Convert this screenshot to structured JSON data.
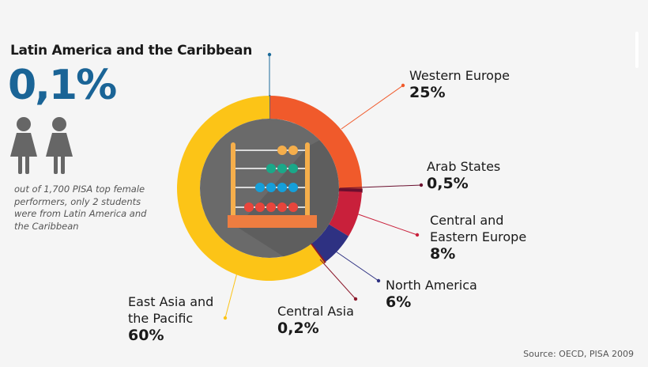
{
  "highlight": {
    "title": "Latin America and the Caribbean",
    "value": "0,1%",
    "description": "out of 1,700 PISA top female performers, only 2 students were from Latin America and the Caribbean",
    "icon": "female-student-icon",
    "icon_count": 2,
    "color": "#1a6496"
  },
  "chart_data": {
    "type": "pie",
    "variant": "donut",
    "start": "top",
    "direction": "clockwise",
    "center_icon": "abacus-icon",
    "slices": [
      {
        "label": "Latin America and the Caribbean",
        "value": 0.1,
        "display": "0,1%",
        "color": "#1b6a9a"
      },
      {
        "label": "Western Europe",
        "value": 25,
        "display": "25%",
        "color": "#f05a2b"
      },
      {
        "label": "Arab States",
        "value": 0.5,
        "display": "0,5%",
        "color": "#6a0f2e"
      },
      {
        "label": "Central and Eastern Europe",
        "value": 8,
        "display": "8%",
        "color": "#c9203b"
      },
      {
        "label": "North America",
        "value": 6,
        "display": "6%",
        "color": "#2e3182"
      },
      {
        "label": "Central Asia",
        "value": 0.2,
        "display": "0,2%",
        "color": "#8c1a2c"
      },
      {
        "label": "East Asia and the Pacific",
        "value": 60,
        "display": "60%",
        "color": "#fcc417"
      }
    ],
    "labels": [
      {
        "lines": [
          "Western Europe"
        ],
        "value": "25%"
      },
      {
        "lines": [
          "Arab States"
        ],
        "value": "0,5%"
      },
      {
        "lines": [
          "Central and",
          "Eastern Europe"
        ],
        "value": "8%"
      },
      {
        "lines": [
          "North America"
        ],
        "value": "6%"
      },
      {
        "lines": [
          "Central Asia"
        ],
        "value": "0,2%"
      },
      {
        "lines": [
          "East Asia and",
          "the Pacific"
        ],
        "value": "60%"
      }
    ]
  },
  "source": "Source: OECD, PISA 2009"
}
